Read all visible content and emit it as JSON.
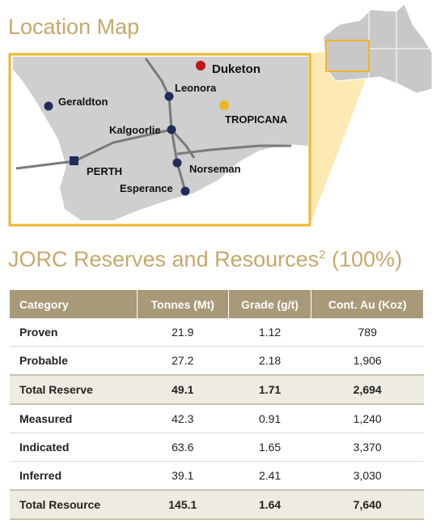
{
  "location_map": {
    "title": "Location Map",
    "places": [
      "Duketon",
      "Leonora",
      "Geraldton",
      "TROPICANA",
      "Kalgoorlie",
      "PERTH",
      "Norseman",
      "Esperance"
    ]
  },
  "jorc": {
    "title": "JORC Reserves and Resources",
    "superscript": "2",
    "suffix": "(100%)",
    "table": {
      "header": [
        "Category",
        "Tonnes (Mt)",
        "Grade (g/t)",
        "Cont. Au (Koz)"
      ],
      "rows": [
        [
          "Proven",
          "21.9",
          "1.12",
          "789"
        ],
        [
          "Probable",
          "27.2",
          "2.18",
          "1,906"
        ],
        [
          "Total Reserve",
          "49.1",
          "1.71",
          "2,694"
        ],
        [
          "Measured",
          "42.3",
          "0.91",
          "1,240"
        ],
        [
          "Indicated",
          "63.6",
          "1.65",
          "3,370"
        ],
        [
          "Inferred",
          "39.1",
          "2.41",
          "3,030"
        ],
        [
          "Total Resource",
          "145.1",
          "1.64",
          "7,640"
        ]
      ]
    }
  }
}
